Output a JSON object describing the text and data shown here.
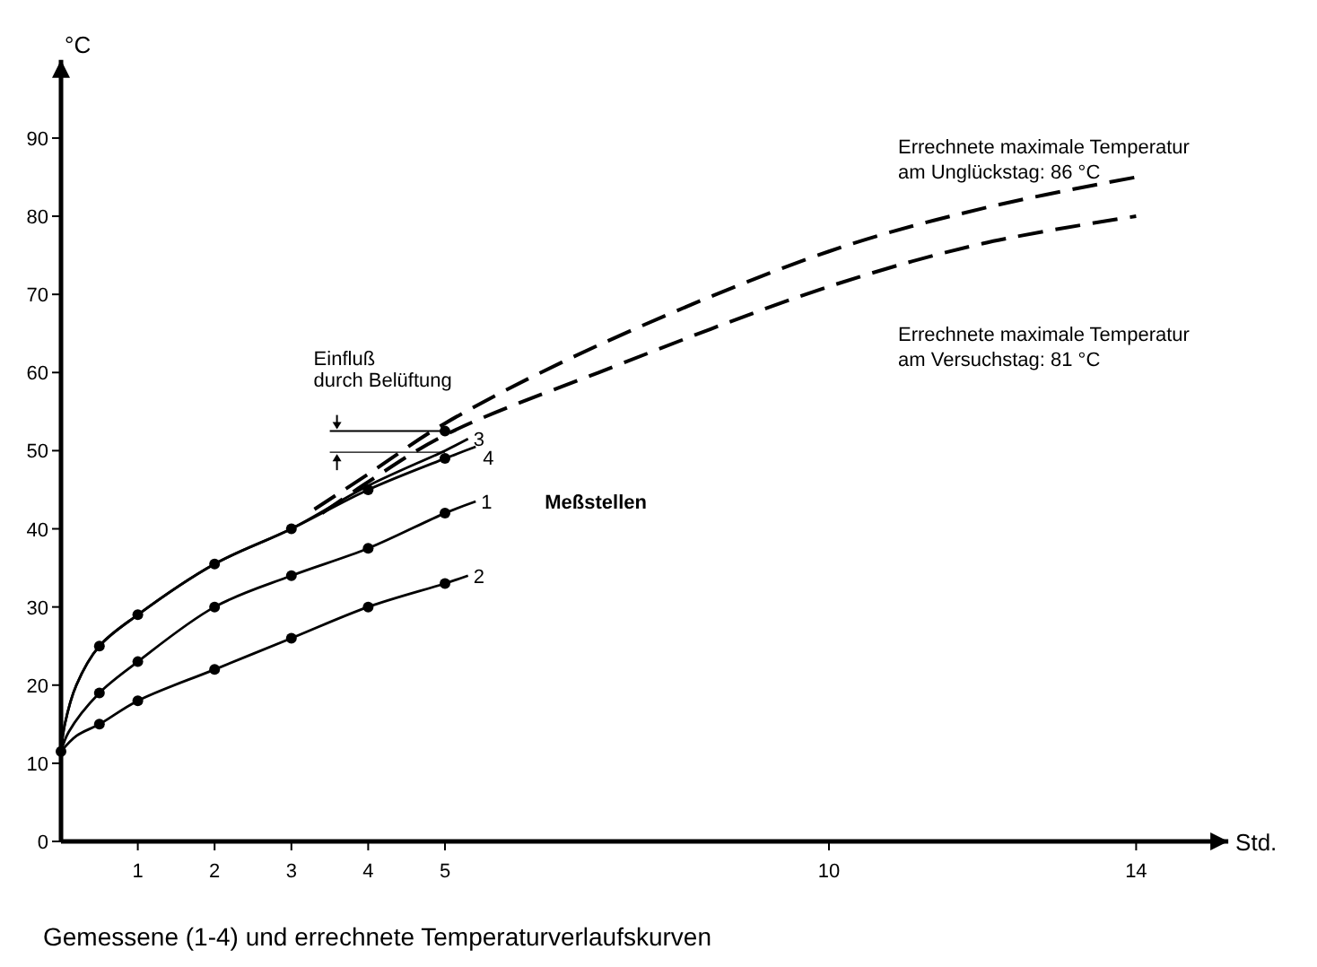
{
  "chart_data": {
    "type": "line",
    "title": "Gemessene (1-4) und errechnete Temperaturverlaufskurven",
    "xlabel": "Std.",
    "ylabel": "°C",
    "xlim": [
      0,
      15.2
    ],
    "ylim": [
      0,
      100
    ],
    "xticks": [
      1,
      2,
      3,
      4,
      5,
      10,
      14
    ],
    "yticks": [
      0,
      10,
      20,
      30,
      40,
      50,
      60,
      70,
      80,
      90
    ],
    "grid": false,
    "line_style": "solid",
    "marker": "none",
    "series": [
      {
        "name": "3",
        "color": "#000000",
        "x": [
          0,
          0.05,
          0.2,
          0.5,
          1,
          2,
          3,
          4,
          5,
          5.3
        ],
        "values": [
          11.5,
          15,
          20,
          25,
          29,
          35.5,
          40,
          45.5,
          50,
          51.5
        ]
      },
      {
        "name": "4",
        "color": "#000000",
        "x": [
          0,
          0.05,
          0.2,
          0.5,
          1,
          2,
          3,
          4,
          5,
          5.4
        ],
        "values": [
          11.5,
          15,
          20,
          25,
          29,
          35.5,
          40,
          45,
          49,
          50.5
        ]
      },
      {
        "name": "1",
        "color": "#000000",
        "x": [
          0,
          0.1,
          0.5,
          1,
          2,
          3,
          4,
          5,
          5.4
        ],
        "values": [
          11.5,
          14,
          19,
          23,
          30,
          34,
          37.5,
          42,
          43.5
        ]
      },
      {
        "name": "2",
        "color": "#000000",
        "x": [
          0,
          0.2,
          0.5,
          1,
          2,
          3,
          4,
          5,
          5.3
        ],
        "values": [
          11.5,
          13.5,
          15,
          18,
          22,
          26,
          30,
          33,
          34
        ]
      },
      {
        "name": "Errechnete maximale Temperatur am Unglückstag: 86 °C",
        "color": "#000000",
        "line_style": "dashed",
        "x": [
          3.3,
          4,
          5,
          7,
          10,
          12,
          14
        ],
        "values": [
          42.5,
          47,
          53.5,
          63.5,
          75.5,
          81,
          85
        ]
      },
      {
        "name": "Errechnete maximale Temperatur am Versuchstag: 81 °C",
        "color": "#000000",
        "line_style": "dashed",
        "x": [
          3.4,
          4,
          5,
          7,
          10,
          12,
          14
        ],
        "values": [
          42,
          46,
          52,
          60,
          71,
          76.5,
          80
        ]
      },
      {
        "type": "scatter",
        "marker": "circle",
        "color": "#000000",
        "x": [
          0,
          0.5,
          1,
          2,
          3,
          4,
          5,
          5,
          0.5,
          1,
          2,
          3,
          4,
          5,
          0.5,
          1,
          2,
          3,
          4,
          5
        ],
        "values": [
          11.5,
          25,
          29,
          35.5,
          40,
          45,
          52.5,
          49,
          19,
          23,
          30,
          34,
          37.5,
          42,
          15,
          18,
          22,
          26,
          30,
          33
        ]
      }
    ],
    "annotations": [
      "Meßstellen",
      "Einfluß durch Belüftung"
    ]
  }
}
